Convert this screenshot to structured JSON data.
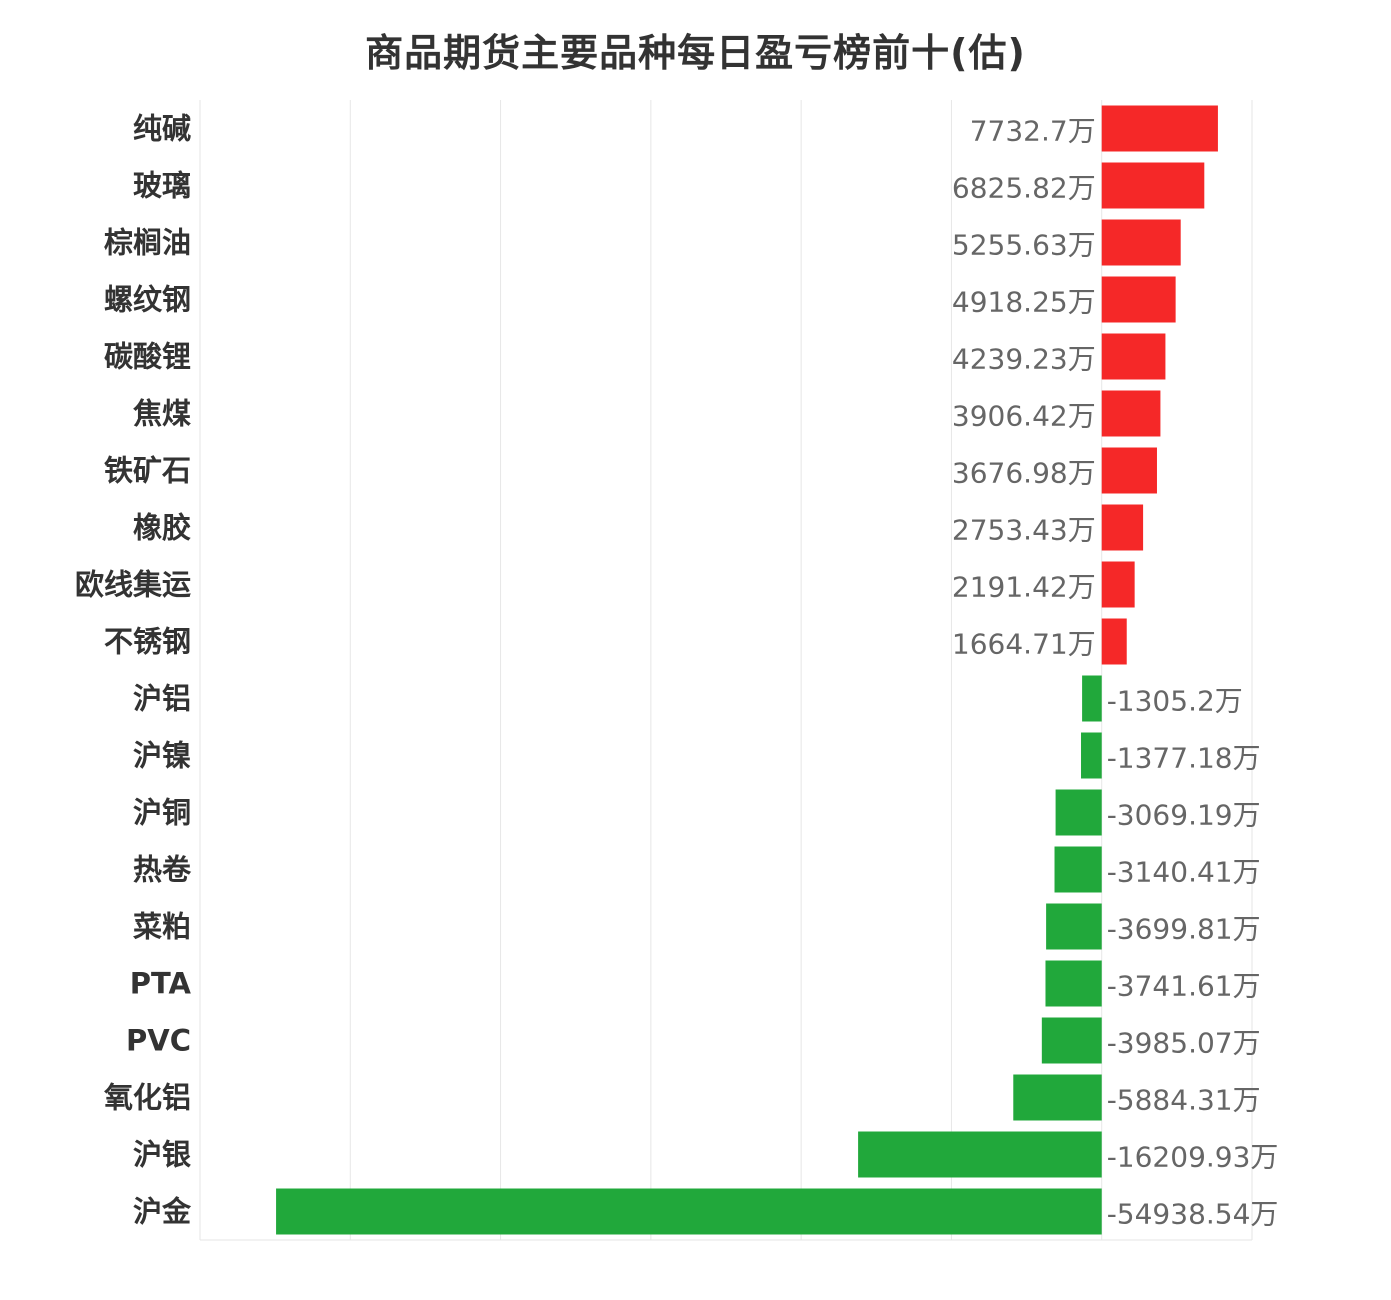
{
  "chart_data": {
    "type": "bar",
    "orientation": "horizontal",
    "title": "商品期货主要品种每日盈亏榜前十(估)",
    "unit_suffix": "万",
    "categories": [
      "纯碱",
      "玻璃",
      "棕榈油",
      "螺纹钢",
      "碳酸锂",
      "焦煤",
      "铁矿石",
      "橡胶",
      "欧线集运",
      "不锈钢",
      "沪铝",
      "沪镍",
      "沪铜",
      "热卷",
      "菜粕",
      "PTA",
      "PVC",
      "氧化铝",
      "沪银",
      "沪金"
    ],
    "values": [
      7732.7,
      6825.82,
      5255.63,
      4918.25,
      4239.23,
      3906.42,
      3676.98,
      2753.43,
      2191.42,
      1664.71,
      -1305.2,
      -1377.18,
      -3069.19,
      -3140.41,
      -3699.81,
      -3741.61,
      -3985.07,
      -5884.31,
      -16209.93,
      -54938.54
    ],
    "value_labels": [
      "7732.7万",
      "6825.82万",
      "5255.63万",
      "4918.25万",
      "4239.23万",
      "3906.42万",
      "3676.98万",
      "2753.43万",
      "2191.42万",
      "1664.71万",
      "-1305.2万",
      "-1377.18万",
      "-3069.19万",
      "-3140.41万",
      "-3699.81万",
      "-3741.61万",
      "-3985.07万",
      "-5884.31万",
      "-16209.93万",
      "-54938.54万"
    ],
    "xlim": [
      -60000,
      10000
    ],
    "grid": true,
    "colors": {
      "positive": "#f52828",
      "negative": "#21a83b",
      "grid": "#e6e6e6"
    }
  }
}
